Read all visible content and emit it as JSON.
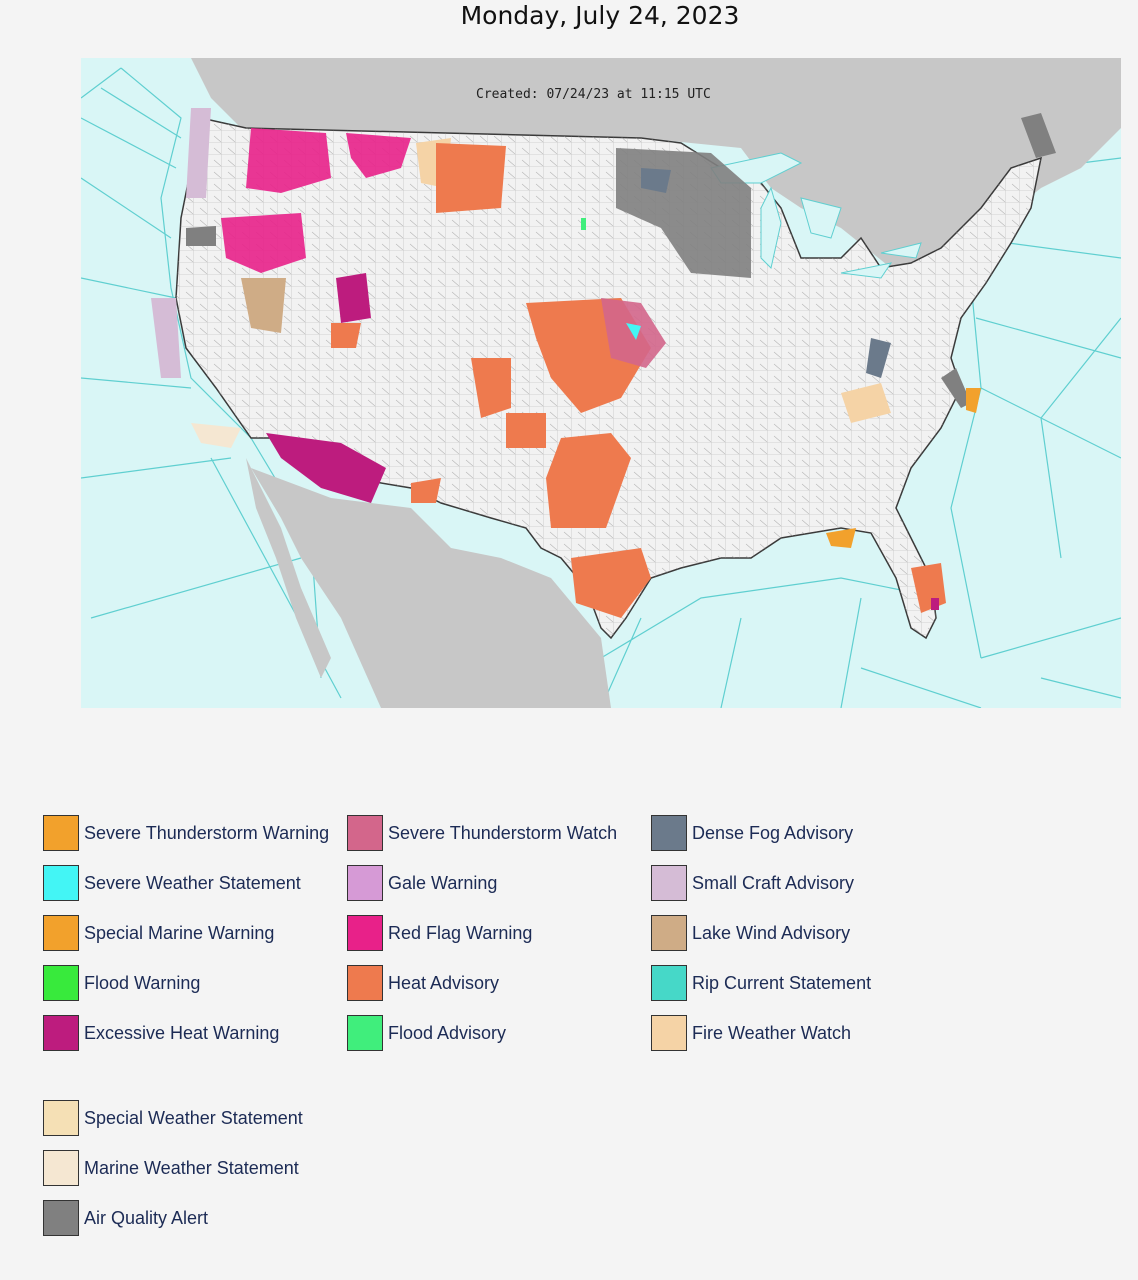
{
  "page": {
    "title": "Monday, July 24, 2023"
  },
  "map": {
    "created_stamp": "Created: 07/24/23 at 11:15 UTC"
  },
  "legend": [
    {
      "label": "Severe Thunderstorm Warning",
      "color": "#f2a12c"
    },
    {
      "label": "Severe Weather Statement",
      "color": "#43f5f5"
    },
    {
      "label": "Special Marine Warning",
      "color": "#f2a12c"
    },
    {
      "label": "Flood Warning",
      "color": "#38ea3c"
    },
    {
      "label": "Excessive Heat Warning",
      "color": "#bd1c7e"
    },
    {
      "label": "Severe Thunderstorm Watch",
      "color": "#d3668b"
    },
    {
      "label": "Gale Warning",
      "color": "#d69ad6"
    },
    {
      "label": "Red Flag Warning",
      "color": "#e82189"
    },
    {
      "label": "Heat Advisory",
      "color": "#ee7a4e"
    },
    {
      "label": "Flood Advisory",
      "color": "#40ee7c"
    },
    {
      "label": "Dense Fog Advisory",
      "color": "#6b7a8b"
    },
    {
      "label": "Small Craft Advisory",
      "color": "#d5bcd6"
    },
    {
      "label": "Lake Wind Advisory",
      "color": "#cfac86"
    },
    {
      "label": "Rip Current Statement",
      "color": "#46d8c8"
    },
    {
      "label": "Fire Weather Watch",
      "color": "#f5d3a6"
    },
    {
      "label": "Special Weather Statement",
      "color": "#f5e0b5"
    },
    {
      "label": "Marine Weather Statement",
      "color": "#f5e7d2"
    },
    {
      "label": "Air Quality Alert",
      "color": "#808080"
    }
  ]
}
